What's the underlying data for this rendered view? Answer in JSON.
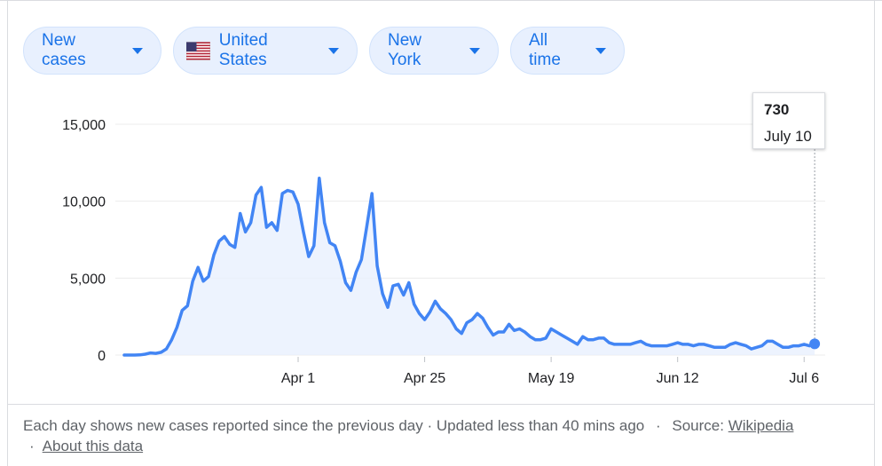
{
  "filters": [
    {
      "label": "New cases",
      "name": "metric-dropdown"
    },
    {
      "label": "United States",
      "name": "country-dropdown",
      "icon": "us-flag-icon"
    },
    {
      "label": "New York",
      "name": "region-dropdown"
    },
    {
      "label": "All time",
      "name": "time-range-dropdown"
    }
  ],
  "tooltip": {
    "value": "730",
    "date": "July 10"
  },
  "footer": {
    "text": "Each day shows new cases reported since the previous day · Updated less than 40 mins ago",
    "source_label": "Source:",
    "source_link": "Wikipedia",
    "about_link": "About this data"
  },
  "colors": {
    "line": "#4285f4",
    "area": "#e8f0fe",
    "accent": "#1a73e8"
  },
  "chart_data": {
    "type": "area",
    "title": "",
    "xlabel": "",
    "ylabel": "",
    "ylim": [
      0,
      15000
    ],
    "y_ticks": [
      0,
      5000,
      10000,
      15000
    ],
    "y_tick_labels": [
      "0",
      "5,000",
      "10,000",
      "15,000"
    ],
    "x_ticks": [
      {
        "label": "Apr 1",
        "day": 31
      },
      {
        "label": "Apr 25",
        "day": 55
      },
      {
        "label": "May 19",
        "day": 79
      },
      {
        "label": "Jun 12",
        "day": 103
      },
      {
        "label": "Jul 6",
        "day": 127
      }
    ],
    "x_day_range": [
      -2,
      131
    ],
    "grid": true,
    "series": [
      {
        "values": [
          [
            -2,
            0
          ],
          [
            0,
            0
          ],
          [
            1,
            10
          ],
          [
            2,
            60
          ],
          [
            3,
            140
          ],
          [
            4,
            110
          ],
          [
            5,
            180
          ],
          [
            6,
            400
          ],
          [
            7,
            1000
          ],
          [
            8,
            1800
          ],
          [
            9,
            2900
          ],
          [
            10,
            3200
          ],
          [
            11,
            4800
          ],
          [
            12,
            5700
          ],
          [
            13,
            4800
          ],
          [
            14,
            5100
          ],
          [
            15,
            6500
          ],
          [
            16,
            7400
          ],
          [
            17,
            7700
          ],
          [
            18,
            7200
          ],
          [
            19,
            7000
          ],
          [
            20,
            9200
          ],
          [
            21,
            8000
          ],
          [
            22,
            8600
          ],
          [
            23,
            10400
          ],
          [
            24,
            10900
          ],
          [
            25,
            8300
          ],
          [
            26,
            8600
          ],
          [
            27,
            8100
          ],
          [
            28,
            10500
          ],
          [
            29,
            10700
          ],
          [
            30,
            10600
          ],
          [
            31,
            9800
          ],
          [
            32,
            8000
          ],
          [
            33,
            6400
          ],
          [
            34,
            7100
          ],
          [
            35,
            11500
          ],
          [
            36,
            8600
          ],
          [
            37,
            7300
          ],
          [
            38,
            7100
          ],
          [
            39,
            6100
          ],
          [
            40,
            4700
          ],
          [
            41,
            4200
          ],
          [
            42,
            5400
          ],
          [
            43,
            6200
          ],
          [
            44,
            8300
          ],
          [
            45,
            10500
          ],
          [
            46,
            5800
          ],
          [
            47,
            4000
          ],
          [
            48,
            3100
          ],
          [
            49,
            4500
          ],
          [
            50,
            4600
          ],
          [
            51,
            3900
          ],
          [
            52,
            4700
          ],
          [
            53,
            3300
          ],
          [
            54,
            2700
          ],
          [
            55,
            2300
          ],
          [
            56,
            2800
          ],
          [
            57,
            3500
          ],
          [
            58,
            3000
          ],
          [
            59,
            2700
          ],
          [
            60,
            2300
          ],
          [
            61,
            1700
          ],
          [
            62,
            1400
          ],
          [
            63,
            2100
          ],
          [
            64,
            2300
          ],
          [
            65,
            2700
          ],
          [
            66,
            2400
          ],
          [
            67,
            1800
          ],
          [
            68,
            1300
          ],
          [
            69,
            1500
          ],
          [
            70,
            1500
          ],
          [
            71,
            2000
          ],
          [
            72,
            1600
          ],
          [
            73,
            1700
          ],
          [
            74,
            1500
          ],
          [
            75,
            1200
          ],
          [
            76,
            1000
          ],
          [
            77,
            1000
          ],
          [
            78,
            1100
          ],
          [
            79,
            1700
          ],
          [
            80,
            1500
          ],
          [
            81,
            1300
          ],
          [
            82,
            1100
          ],
          [
            83,
            900
          ],
          [
            84,
            700
          ],
          [
            85,
            1200
          ],
          [
            86,
            1000
          ],
          [
            87,
            1000
          ],
          [
            88,
            1100
          ],
          [
            89,
            1100
          ],
          [
            90,
            800
          ],
          [
            91,
            700
          ],
          [
            92,
            700
          ],
          [
            93,
            700
          ],
          [
            94,
            700
          ],
          [
            95,
            800
          ],
          [
            96,
            900
          ],
          [
            97,
            700
          ],
          [
            98,
            600
          ],
          [
            99,
            600
          ],
          [
            100,
            600
          ],
          [
            101,
            600
          ],
          [
            102,
            700
          ],
          [
            103,
            800
          ],
          [
            104,
            700
          ],
          [
            105,
            700
          ],
          [
            106,
            600
          ],
          [
            107,
            700
          ],
          [
            108,
            700
          ],
          [
            109,
            600
          ],
          [
            110,
            500
          ],
          [
            111,
            500
          ],
          [
            112,
            500
          ],
          [
            113,
            700
          ],
          [
            114,
            800
          ],
          [
            115,
            700
          ],
          [
            116,
            600
          ],
          [
            117,
            400
          ],
          [
            118,
            500
          ],
          [
            119,
            600
          ],
          [
            120,
            900
          ],
          [
            121,
            900
          ],
          [
            122,
            700
          ],
          [
            123,
            500
          ],
          [
            124,
            500
          ],
          [
            125,
            600
          ],
          [
            126,
            600
          ],
          [
            127,
            700
          ],
          [
            128,
            600
          ],
          [
            129,
            730
          ]
        ]
      }
    ],
    "highlight": {
      "day": 129,
      "value": 730
    }
  }
}
